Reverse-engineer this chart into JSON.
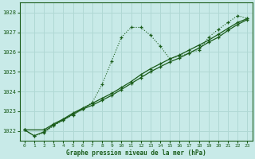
{
  "title": "Graphe pression niveau de la mer (hPa)",
  "bg_color": "#c8eae8",
  "grid_color": "#b0d8d4",
  "line_color": "#1a5c1a",
  "xlim": [
    -0.5,
    23.5
  ],
  "ylim": [
    1021.5,
    1028.5
  ],
  "yticks": [
    1022,
    1023,
    1024,
    1025,
    1026,
    1027,
    1028
  ],
  "xticks": [
    0,
    1,
    2,
    3,
    4,
    5,
    6,
    7,
    8,
    9,
    10,
    11,
    12,
    13,
    14,
    15,
    16,
    17,
    18,
    19,
    20,
    21,
    22,
    23
  ],
  "series_dotted_x": [
    0,
    1,
    2,
    3,
    4,
    5,
    6,
    7,
    8,
    9,
    10,
    11,
    12,
    13,
    14,
    15,
    16,
    17,
    18,
    19,
    20,
    21,
    22,
    23
  ],
  "series_dotted_y": [
    1022.05,
    1021.75,
    1021.9,
    1022.25,
    1022.55,
    1022.8,
    1023.1,
    1023.45,
    1024.35,
    1025.55,
    1026.75,
    1027.25,
    1027.25,
    1026.85,
    1026.3,
    1025.65,
    1025.8,
    1025.95,
    1026.1,
    1026.75,
    1027.15,
    1027.5,
    1027.85,
    1027.7
  ],
  "series_solid1_x": [
    0,
    1,
    2,
    3,
    4,
    5,
    6,
    7,
    8,
    9,
    10,
    11,
    12,
    13,
    14,
    15,
    16,
    17,
    18,
    19,
    20,
    21,
    22,
    23
  ],
  "series_solid1_y": [
    1022.05,
    1021.75,
    1021.95,
    1022.3,
    1022.55,
    1022.85,
    1023.1,
    1023.3,
    1023.55,
    1023.8,
    1024.1,
    1024.4,
    1024.7,
    1025.0,
    1025.25,
    1025.5,
    1025.7,
    1025.95,
    1026.2,
    1026.5,
    1026.75,
    1027.1,
    1027.4,
    1027.65
  ],
  "series_solid2_x": [
    0,
    2,
    3,
    4,
    5,
    6,
    7,
    8,
    9,
    10,
    11,
    12,
    13,
    14,
    15,
    16,
    17,
    18,
    19,
    20,
    21,
    22,
    23
  ],
  "series_solid2_y": [
    1022.05,
    1022.05,
    1022.35,
    1022.6,
    1022.9,
    1023.15,
    1023.4,
    1023.65,
    1023.9,
    1024.2,
    1024.5,
    1024.85,
    1025.15,
    1025.4,
    1025.65,
    1025.85,
    1026.1,
    1026.35,
    1026.6,
    1026.9,
    1027.2,
    1027.5,
    1027.7
  ]
}
